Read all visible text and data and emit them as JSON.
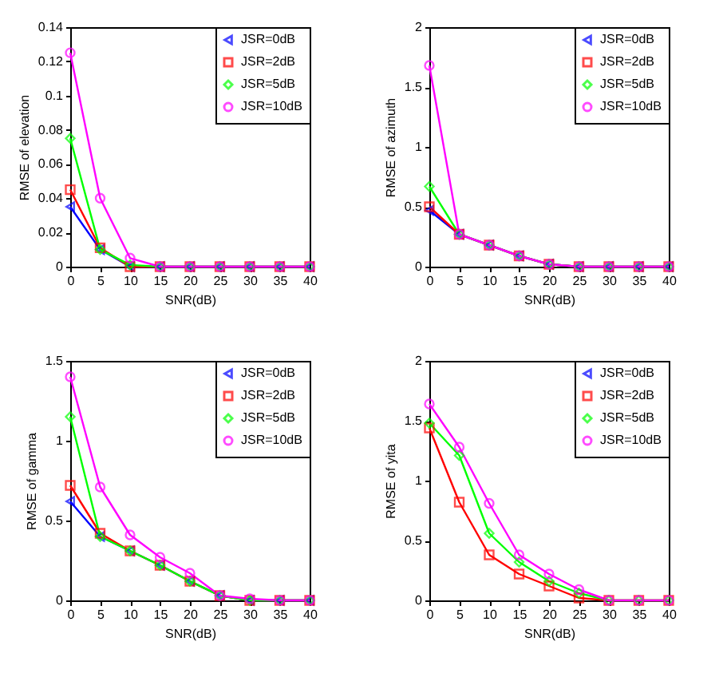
{
  "chart_data": [
    {
      "type": "line",
      "xlabel": "SNR(dB)",
      "ylabel": "RMSE of elevation",
      "x": [
        0,
        5,
        10,
        15,
        20,
        25,
        30,
        35,
        40
      ],
      "xlim": [
        0,
        40
      ],
      "xticks": [
        0,
        5,
        10,
        15,
        20,
        25,
        30,
        35,
        40
      ],
      "ylim": [
        0,
        0.14
      ],
      "yticks": [
        0,
        0.02,
        0.04,
        0.06,
        0.08,
        0.1,
        0.12,
        0.14
      ],
      "grid": false,
      "legend": "top right",
      "series": [
        {
          "name": "JSR=0dB",
          "color": "#0000ff",
          "marker": "triangle",
          "values": [
            0.035,
            0.01,
            0,
            0,
            0,
            0,
            0,
            0,
            0
          ]
        },
        {
          "name": "JSR=2dB",
          "color": "#ff0000",
          "marker": "square",
          "values": [
            0.045,
            0.011,
            0,
            0,
            0,
            0,
            0,
            0,
            0
          ]
        },
        {
          "name": "JSR=5dB",
          "color": "#00ff00",
          "marker": "diamond",
          "values": [
            0.075,
            0.01,
            0.001,
            0,
            0,
            0,
            0,
            0,
            0
          ]
        },
        {
          "name": "JSR=10dB",
          "color": "#ff00ff",
          "marker": "circle",
          "values": [
            0.125,
            0.04,
            0.005,
            0,
            0,
            0,
            0,
            0,
            0
          ]
        }
      ]
    },
    {
      "type": "line",
      "xlabel": "SNR(dB)",
      "ylabel": "RMSE of azimuth",
      "x": [
        0,
        5,
        10,
        15,
        20,
        25,
        30,
        35,
        40
      ],
      "xlim": [
        0,
        40
      ],
      "xticks": [
        0,
        5,
        10,
        15,
        20,
        25,
        30,
        35,
        40
      ],
      "ylim": [
        0,
        2
      ],
      "yticks": [
        0,
        0.5,
        1,
        1.5,
        2
      ],
      "grid": false,
      "legend": "top right",
      "series": [
        {
          "name": "JSR=0dB",
          "color": "#0000ff",
          "marker": "triangle",
          "values": [
            0.47,
            0.27,
            0.18,
            0.09,
            0.02,
            0,
            0,
            0,
            0
          ]
        },
        {
          "name": "JSR=2dB",
          "color": "#ff0000",
          "marker": "square",
          "values": [
            0.5,
            0.27,
            0.18,
            0.09,
            0.02,
            0,
            0,
            0,
            0
          ]
        },
        {
          "name": "JSR=5dB",
          "color": "#00ff00",
          "marker": "diamond",
          "values": [
            0.67,
            0.27,
            0.18,
            0.09,
            0.02,
            0,
            0,
            0,
            0
          ]
        },
        {
          "name": "JSR=10dB",
          "color": "#ff00ff",
          "marker": "circle",
          "values": [
            1.68,
            0.27,
            0.18,
            0.09,
            0.02,
            0,
            0,
            0,
            0
          ]
        }
      ]
    },
    {
      "type": "line",
      "xlabel": "SNR(dB)",
      "ylabel": "RMSE of gamma",
      "x": [
        0,
        5,
        10,
        15,
        20,
        25,
        30,
        35,
        40
      ],
      "xlim": [
        0,
        40
      ],
      "xticks": [
        0,
        5,
        10,
        15,
        20,
        25,
        30,
        35,
        40
      ],
      "ylim": [
        0,
        1.5
      ],
      "yticks": [
        0,
        0.5,
        1,
        1.5
      ],
      "grid": false,
      "legend": "top right",
      "series": [
        {
          "name": "JSR=0dB",
          "color": "#0000ff",
          "marker": "triangle",
          "values": [
            0.62,
            0.4,
            0.31,
            0.22,
            0.12,
            0.03,
            0,
            0,
            0
          ]
        },
        {
          "name": "JSR=2dB",
          "color": "#ff0000",
          "marker": "square",
          "values": [
            0.72,
            0.42,
            0.31,
            0.22,
            0.12,
            0.03,
            0,
            0,
            0
          ]
        },
        {
          "name": "JSR=5dB",
          "color": "#00ff00",
          "marker": "diamond",
          "values": [
            1.15,
            0.4,
            0.31,
            0.22,
            0.12,
            0.03,
            0,
            0,
            0
          ]
        },
        {
          "name": "JSR=10dB",
          "color": "#ff00ff",
          "marker": "circle",
          "values": [
            1.4,
            0.71,
            0.41,
            0.27,
            0.17,
            0.03,
            0.01,
            0,
            0
          ]
        }
      ]
    },
    {
      "type": "line",
      "xlabel": "SNR(dB)",
      "ylabel": "RMSE of yita",
      "x": [
        0,
        5,
        10,
        15,
        20,
        25,
        30,
        35,
        40
      ],
      "xlim": [
        0,
        40
      ],
      "xticks": [
        0,
        5,
        10,
        15,
        20,
        25,
        30,
        35,
        40
      ],
      "ylim": [
        0,
        2
      ],
      "yticks": [
        0,
        0.5,
        1,
        1.5,
        2
      ],
      "grid": false,
      "legend": "top right",
      "series": [
        {
          "name": "JSR=0dB",
          "color": "#0000ff",
          "marker": "triangle",
          "values": [
            null,
            null,
            null,
            null,
            null,
            null,
            null,
            null,
            null
          ]
        },
        {
          "name": "JSR=2dB",
          "color": "#ff0000",
          "marker": "square",
          "values": [
            1.44,
            0.82,
            0.38,
            0.22,
            0.12,
            0.02,
            0,
            0,
            0
          ]
        },
        {
          "name": "JSR=5dB",
          "color": "#00ff00",
          "marker": "diamond",
          "values": [
            1.48,
            1.21,
            0.56,
            0.32,
            0.16,
            0.06,
            0,
            0,
            0
          ]
        },
        {
          "name": "JSR=10dB",
          "color": "#ff00ff",
          "marker": "circle",
          "values": [
            1.64,
            1.28,
            0.81,
            0.38,
            0.22,
            0.09,
            0,
            0,
            0
          ]
        }
      ]
    }
  ]
}
